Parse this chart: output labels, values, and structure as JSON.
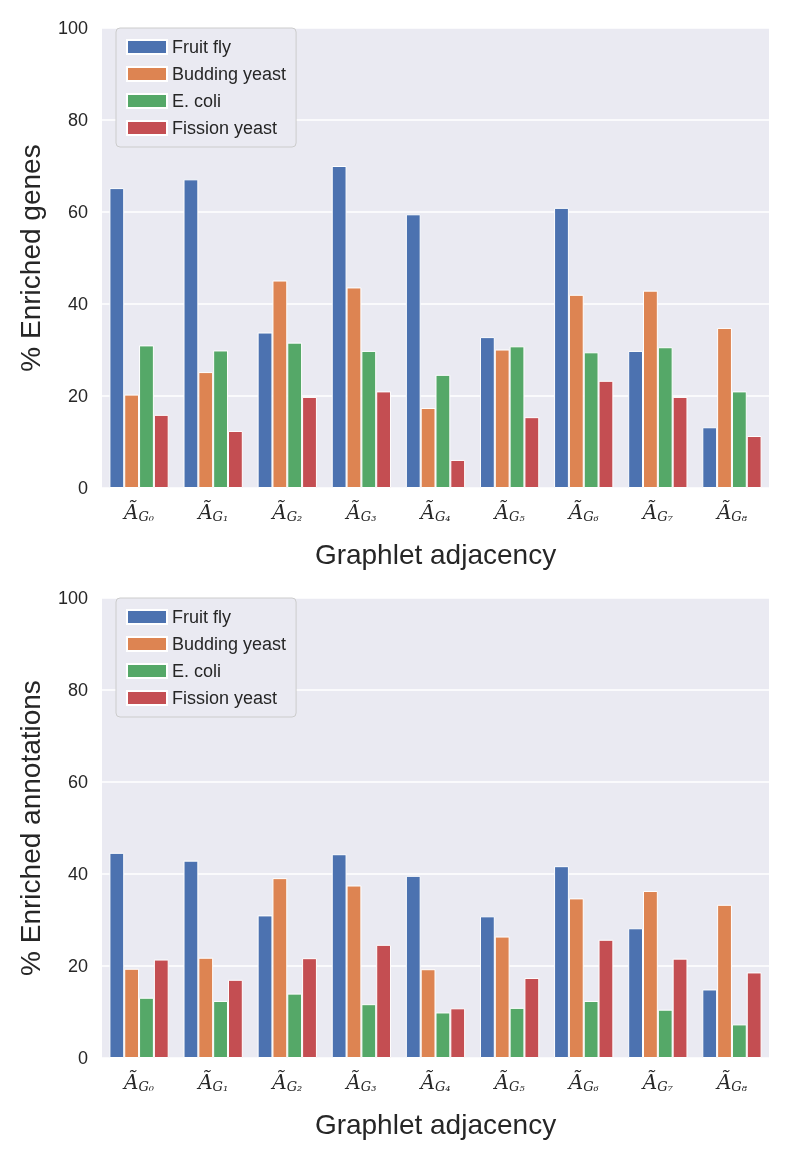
{
  "chart_data": [
    {
      "type": "bar",
      "xlabel": "Graphlet adjacency",
      "ylabel": "% Enriched genes",
      "categories": [
        "Ã$_{G₀}$",
        "Ã$_{G₁}$",
        "Ã$_{G₂}$",
        "Ã$_{G₃}$",
        "Ã$_{G₄}$",
        "Ã$_{G₅}$",
        "Ã$_{G₆}$",
        "Ã$_{G₇}$",
        "Ã$_{G₈}$"
      ],
      "ylim": [
        0,
        100
      ],
      "yticks": [
        0,
        20,
        40,
        60,
        80,
        100
      ],
      "grid": "y",
      "legend": "top left",
      "series": [
        {
          "name": "Fruit fly",
          "color": "#4c72b0",
          "values": [
            65.2,
            67.1,
            33.8,
            70,
            59.5,
            32.8,
            60.9,
            29.8,
            13.2
          ]
        },
        {
          "name": "Budding yeast",
          "color": "#dd8452",
          "values": [
            20.3,
            25.2,
            45.1,
            43.6,
            17.4,
            30.1,
            42,
            42.9,
            34.8
          ]
        },
        {
          "name": "E. coli",
          "color": "#55a868",
          "values": [
            31,
            29.9,
            31.6,
            29.8,
            24.6,
            30.8,
            29.5,
            30.6,
            21
          ]
        },
        {
          "name": "Fission yeast",
          "color": "#c44e52",
          "values": [
            15.9,
            12.4,
            19.8,
            21,
            6.1,
            15.4,
            23.3,
            19.8,
            11.3
          ]
        }
      ]
    },
    {
      "type": "bar",
      "xlabel": "Graphlet adjacency",
      "ylabel": "% Enriched annotations",
      "categories": [
        "Ã$_{G₀}$",
        "Ã$_{G₁}$",
        "Ã$_{G₂}$",
        "Ã$_{G₃}$",
        "Ã$_{G₄}$",
        "Ã$_{G₅}$",
        "Ã$_{G₆}$",
        "Ã$_{G₇}$",
        "Ã$_{G₈}$"
      ],
      "ylim": [
        0,
        100
      ],
      "yticks": [
        0,
        20,
        40,
        60,
        80,
        100
      ],
      "grid": "y",
      "legend": "top left",
      "series": [
        {
          "name": "Fruit fly",
          "color": "#4c72b0",
          "values": [
            44.6,
            42.9,
            31,
            44.3,
            39.6,
            30.8,
            41.7,
            28.2,
            14.9
          ]
        },
        {
          "name": "Budding yeast",
          "color": "#dd8452",
          "values": [
            19.4,
            21.8,
            39.1,
            37.5,
            19.3,
            26.4,
            34.7,
            36.3,
            33.3
          ]
        },
        {
          "name": "E. coli",
          "color": "#55a868",
          "values": [
            13.1,
            12.4,
            14,
            11.7,
            9.9,
            10.9,
            12.4,
            10.5,
            7.3
          ]
        },
        {
          "name": "Fission yeast",
          "color": "#c44e52",
          "values": [
            21.4,
            17,
            21.7,
            24.6,
            10.8,
            17.4,
            25.7,
            21.6,
            18.6
          ]
        }
      ]
    }
  ]
}
